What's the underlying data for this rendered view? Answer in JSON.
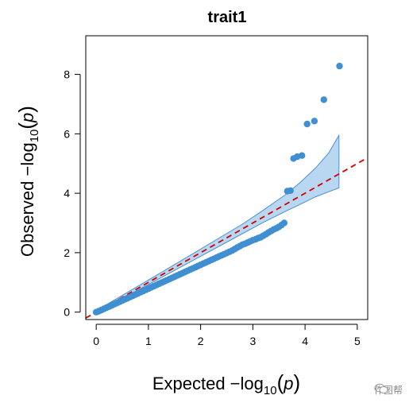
{
  "chart_data": {
    "type": "scatter",
    "title": "trait1",
    "xlabel": {
      "prefix": "Expected  −log",
      "sub": "10",
      "paren_open": "(",
      "var": "p",
      "paren_close": ")"
    },
    "ylabel": {
      "prefix": "Observed  −log",
      "sub": "10",
      "paren_open": "(",
      "var": "p",
      "paren_close": ")"
    },
    "xlim": [
      -0.2,
      5.2
    ],
    "ylim": [
      -0.25,
      9.3
    ],
    "xticks": [
      0,
      1,
      2,
      3,
      4,
      5
    ],
    "yticks": [
      0,
      2,
      4,
      6,
      8
    ],
    "grid": false,
    "legend": "none",
    "point_color": "#3f8fd2",
    "band_fill": "#b9d7f1",
    "band_stroke": "#4a90d0",
    "reference_line": {
      "slope": 1,
      "intercept": 0,
      "color": "#d00000",
      "style": "dashed"
    },
    "confidence_band": {
      "x": [
        0.0,
        1.0,
        2.0,
        2.8,
        3.2,
        3.6,
        3.9,
        4.2,
        4.45,
        4.65
      ],
      "upper": [
        0.05,
        1.08,
        2.12,
        2.96,
        3.43,
        3.92,
        4.35,
        4.85,
        5.35,
        5.95
      ],
      "lower": [
        0.0,
        0.93,
        1.88,
        2.64,
        3.02,
        3.37,
        3.62,
        3.88,
        4.05,
        4.18
      ]
    },
    "curve_points": {
      "x": [
        0.0,
        0.05,
        0.1,
        0.15,
        0.2,
        0.25,
        0.3,
        0.35,
        0.4,
        0.45,
        0.5,
        0.55,
        0.6,
        0.65,
        0.7,
        0.75,
        0.8,
        0.85,
        0.9,
        0.95,
        1.0,
        1.05,
        1.1,
        1.15,
        1.2,
        1.25,
        1.3,
        1.35,
        1.4,
        1.45,
        1.5,
        1.55,
        1.6,
        1.65,
        1.7,
        1.75,
        1.8,
        1.85,
        1.9,
        1.95,
        2.0,
        2.05,
        2.1,
        2.15,
        2.2,
        2.25,
        2.3,
        2.35,
        2.4,
        2.45,
        2.5,
        2.55,
        2.6,
        2.65,
        2.7,
        2.75,
        2.8,
        2.85,
        2.9,
        2.95,
        3.0,
        3.05,
        3.1,
        3.15,
        3.2,
        3.25,
        3.3,
        3.35,
        3.4,
        3.45,
        3.5,
        3.55,
        3.6
      ],
      "y": [
        0.0,
        0.03,
        0.07,
        0.11,
        0.15,
        0.19,
        0.23,
        0.27,
        0.31,
        0.35,
        0.39,
        0.43,
        0.47,
        0.51,
        0.55,
        0.59,
        0.63,
        0.67,
        0.71,
        0.75,
        0.79,
        0.83,
        0.87,
        0.91,
        0.95,
        0.99,
        1.03,
        1.07,
        1.11,
        1.15,
        1.19,
        1.23,
        1.27,
        1.31,
        1.35,
        1.39,
        1.43,
        1.47,
        1.51,
        1.55,
        1.59,
        1.63,
        1.67,
        1.71,
        1.75,
        1.79,
        1.83,
        1.87,
        1.91,
        1.95,
        1.99,
        2.03,
        2.07,
        2.12,
        2.17,
        2.22,
        2.27,
        2.3,
        2.34,
        2.38,
        2.42,
        2.45,
        2.49,
        2.52,
        2.57,
        2.62,
        2.68,
        2.73,
        2.78,
        2.82,
        2.87,
        2.93,
        3.0
      ]
    },
    "outlier_points": {
      "x": [
        3.66,
        3.72,
        3.78,
        3.85,
        3.94,
        4.04,
        4.18,
        4.36,
        4.66
      ],
      "y": [
        4.07,
        4.09,
        5.17,
        5.23,
        5.27,
        6.33,
        6.43,
        7.15,
        8.28
      ]
    }
  },
  "watermark": {
    "text": "作图帮",
    "icon": "wechat-icon"
  }
}
